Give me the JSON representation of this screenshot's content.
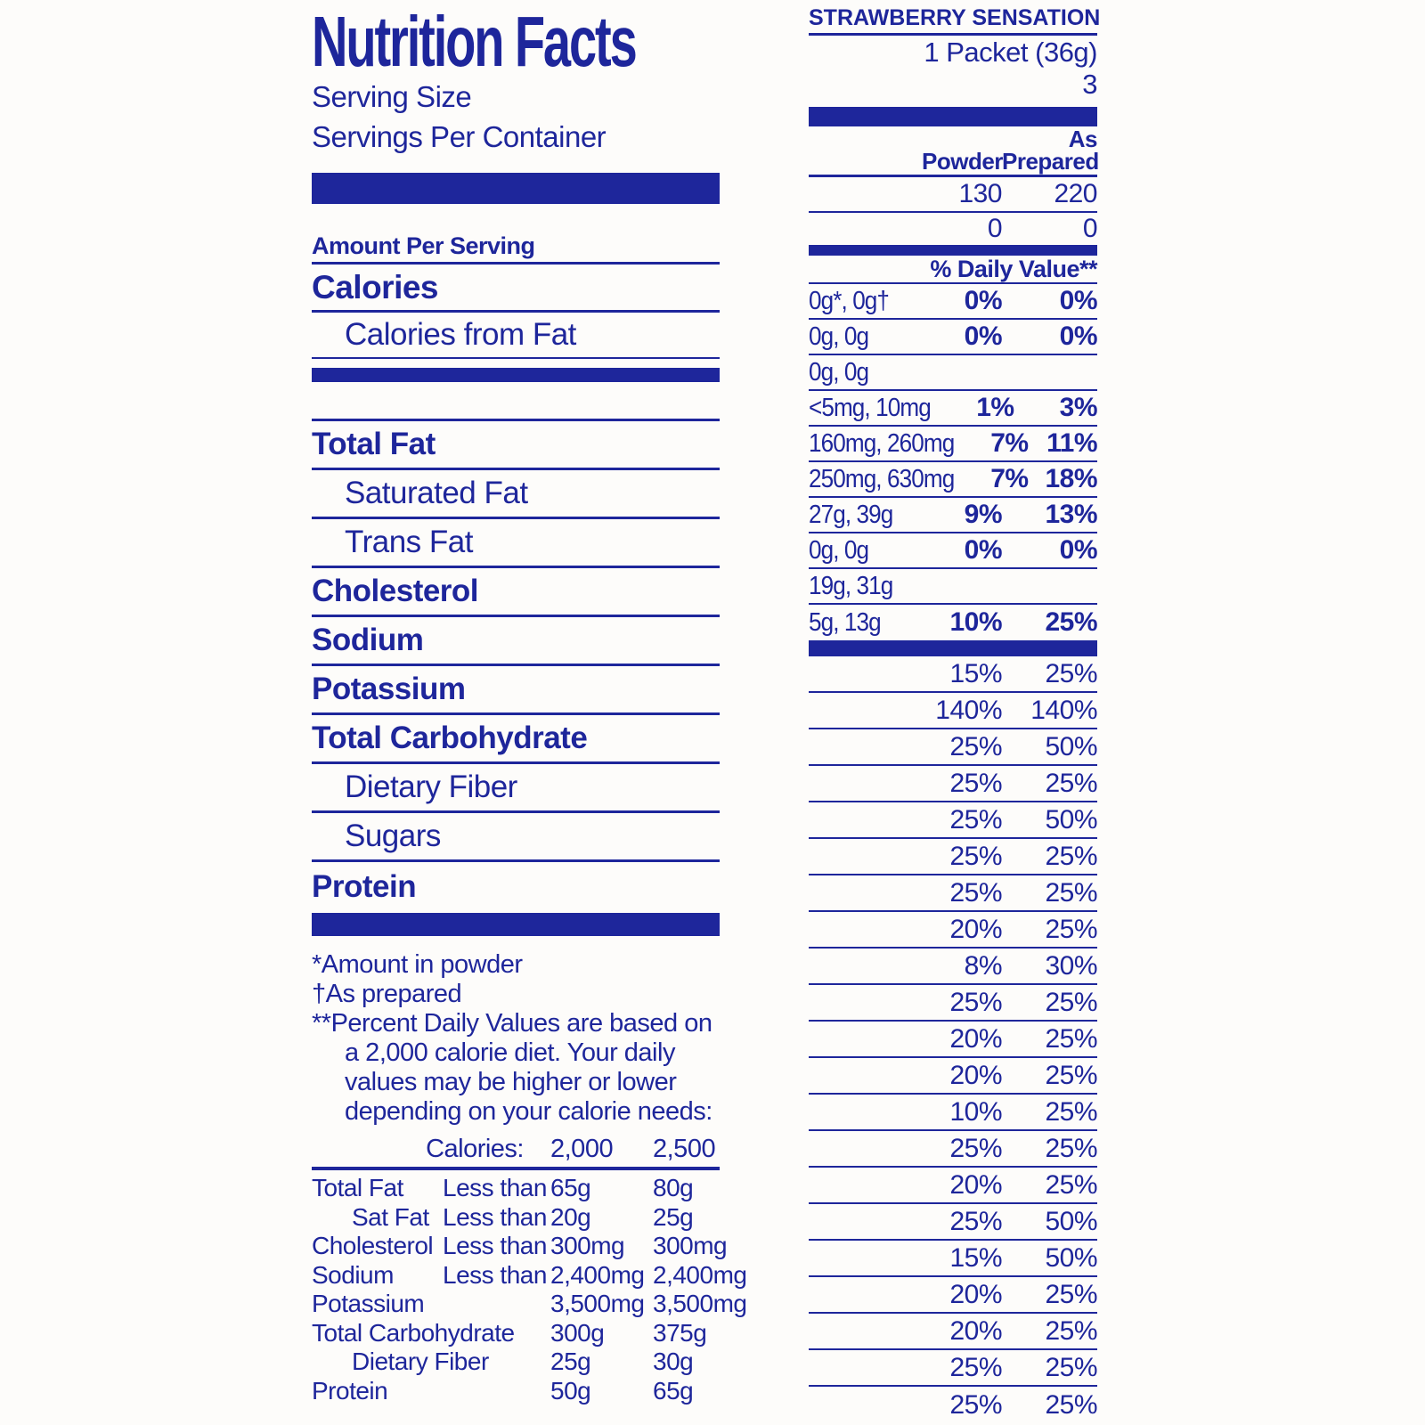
{
  "colors": {
    "ink": "#1e269b",
    "background": "#fdfcfa"
  },
  "left": {
    "title": "Nutrition Facts",
    "serving_size_label": "Serving Size",
    "servings_per_container_label": "Servings Per Container",
    "amount_per_serving_label": "Amount Per Serving",
    "calories_label": "Calories",
    "calories_from_fat_label": "Calories from Fat",
    "nutrients": [
      {
        "label": "Total Fat",
        "style": "bold"
      },
      {
        "label": "Saturated Fat",
        "style": "indent"
      },
      {
        "label": "Trans Fat",
        "style": "indent"
      },
      {
        "label": "Cholesterol",
        "style": "bold"
      },
      {
        "label": "Sodium",
        "style": "bold"
      },
      {
        "label": "Potassium",
        "style": "bold"
      },
      {
        "label": "Total Carbohydrate",
        "style": "bold"
      },
      {
        "label": "Dietary Fiber",
        "style": "indent"
      },
      {
        "label": "Sugars",
        "style": "indent"
      },
      {
        "label": "Protein",
        "style": "bold"
      }
    ],
    "footnotes": {
      "fn1": "*Amount in powder",
      "fn2": "†As prepared",
      "fn3": "**Percent Daily Values are based on a 2,000 calorie diet. Your daily values may be higher or lower depending on your calorie needs:"
    },
    "dv_table": {
      "header": {
        "label": "Calories:",
        "v2000": "2,000",
        "v2500": "2,500"
      },
      "rows": [
        {
          "label": "Total Fat",
          "qualifier": "Less than",
          "v2000": "65g",
          "v2500": "80g"
        },
        {
          "label": "Sat Fat",
          "qualifier": "Less than",
          "v2000": "20g",
          "v2500": "25g",
          "style": "indent"
        },
        {
          "label": "Cholesterol",
          "qualifier": "Less than",
          "v2000": "300mg",
          "v2500": "300mg"
        },
        {
          "label": "Sodium",
          "qualifier": "Less than",
          "v2000": "2,400mg",
          "v2500": "2,400mg"
        },
        {
          "label": "Potassium",
          "qualifier": "",
          "v2000": "3,500mg",
          "v2500": "3,500mg"
        },
        {
          "label": "Total Carbohydrate",
          "qualifier": "",
          "v2000": "300g",
          "v2500": "375g"
        },
        {
          "label": "Dietary Fiber",
          "qualifier": "",
          "v2000": "25g",
          "v2500": "30g",
          "style": "indent"
        },
        {
          "label": "Protein",
          "qualifier": "",
          "v2000": "50g",
          "v2500": "65g"
        }
      ]
    }
  },
  "right": {
    "flavor": "STRAWBERRY SENSATION",
    "serving_size_value": "1 Packet (36g)",
    "servings_per_container_value": "3",
    "col_head_as": "As",
    "col_head_powder": "Powder",
    "col_head_prepared": "Prepared",
    "calories_row": {
      "powder": "130",
      "prepared": "220"
    },
    "calories_from_fat_row": {
      "powder": "0",
      "prepared": "0"
    },
    "daily_value_header": "% Daily Value**",
    "amount_rows": [
      {
        "amounts": "0g*, 0g†",
        "powder": "0%",
        "prepared": "0%"
      },
      {
        "amounts": "0g, 0g",
        "powder": "0%",
        "prepared": "0%"
      },
      {
        "amounts": "0g, 0g",
        "powder": "",
        "prepared": ""
      },
      {
        "amounts": "<5mg, 10mg",
        "powder": "1%",
        "prepared": "3%"
      },
      {
        "amounts": "160mg, 260mg",
        "powder": "7%",
        "prepared": "11%"
      },
      {
        "amounts": "250mg, 630mg",
        "powder": "7%",
        "prepared": "18%"
      },
      {
        "amounts": "27g, 39g",
        "powder": "9%",
        "prepared": "13%"
      },
      {
        "amounts": "0g, 0g",
        "powder": "0%",
        "prepared": "0%"
      },
      {
        "amounts": "19g, 31g",
        "powder": "",
        "prepared": ""
      },
      {
        "amounts": "5g, 13g",
        "powder": "10%",
        "prepared": "25%"
      }
    ],
    "vitamin_rows": [
      {
        "powder": "15%",
        "prepared": "25%"
      },
      {
        "powder": "140%",
        "prepared": "140%"
      },
      {
        "powder": "25%",
        "prepared": "50%"
      },
      {
        "powder": "25%",
        "prepared": "25%"
      },
      {
        "powder": "25%",
        "prepared": "50%"
      },
      {
        "powder": "25%",
        "prepared": "25%"
      },
      {
        "powder": "25%",
        "prepared": "25%"
      },
      {
        "powder": "20%",
        "prepared": "25%"
      },
      {
        "powder": "8%",
        "prepared": "30%"
      },
      {
        "powder": "25%",
        "prepared": "25%"
      },
      {
        "powder": "20%",
        "prepared": "25%"
      },
      {
        "powder": "20%",
        "prepared": "25%"
      },
      {
        "powder": "10%",
        "prepared": "25%"
      },
      {
        "powder": "25%",
        "prepared": "25%"
      },
      {
        "powder": "20%",
        "prepared": "25%"
      },
      {
        "powder": "25%",
        "prepared": "50%"
      },
      {
        "powder": "15%",
        "prepared": "50%"
      },
      {
        "powder": "20%",
        "prepared": "25%"
      },
      {
        "powder": "20%",
        "prepared": "25%"
      },
      {
        "powder": "25%",
        "prepared": "25%"
      },
      {
        "powder": "25%",
        "prepared": "25%"
      }
    ]
  }
}
